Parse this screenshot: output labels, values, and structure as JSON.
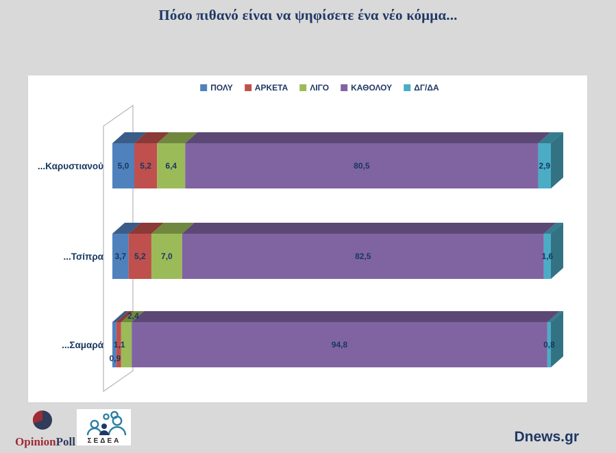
{
  "title": "Πόσο πιθανό είναι να ψηφίσετε ένα νέο κόμμα...",
  "chart_data": {
    "type": "bar",
    "variant": "3d-horizontal-stacked",
    "stacked": true,
    "unit": "percent",
    "xlim": [
      0,
      100
    ],
    "decimal_separator": ",",
    "grid": false,
    "legend_position": "top",
    "categories": [
      "...Καρυστιανού",
      "...Τσίπρα",
      "...Σαμαρά"
    ],
    "series": [
      {
        "name": "ΠΟΛΥ",
        "color": "#4F81BD",
        "values": [
          5.0,
          3.7,
          0.9
        ]
      },
      {
        "name": "ΑΡΚΕΤΑ",
        "color": "#C0504D",
        "values": [
          5.2,
          5.2,
          1.1
        ]
      },
      {
        "name": "ΛΙΓΟ",
        "color": "#9BBB59",
        "values": [
          6.4,
          7.0,
          2.4
        ]
      },
      {
        "name": "ΚΑΘΟΛΟΥ",
        "color": "#8064A2",
        "values": [
          80.5,
          82.5,
          94.8
        ]
      },
      {
        "name": "ΔΓ/ΔΑ",
        "color": "#4BACC6",
        "values": [
          2.9,
          1.6,
          0.8
        ]
      }
    ],
    "value_label_color": "#17375E",
    "category_label_color": "#17375E"
  },
  "branding": {
    "opinion_poll": {
      "text_left": "Opinion",
      "text_right": "Poll",
      "color_left": "#9e2b35",
      "color_right": "#2e3a5c",
      "pie_main_color": "#303c59",
      "pie_wedge_color": "#9e2b35"
    },
    "sedea": {
      "label": "ΣΕΔΕΑ",
      "figure_color": "#2b7ea1",
      "dark_figure_color": "#1f3864",
      "text_color": "#222222"
    },
    "source": {
      "label": "Dnews.gr",
      "color": "#1f3864"
    }
  },
  "page": {
    "background": "#d9d9d9",
    "panel_background": "#ffffff",
    "title_color": "#1f3864"
  }
}
